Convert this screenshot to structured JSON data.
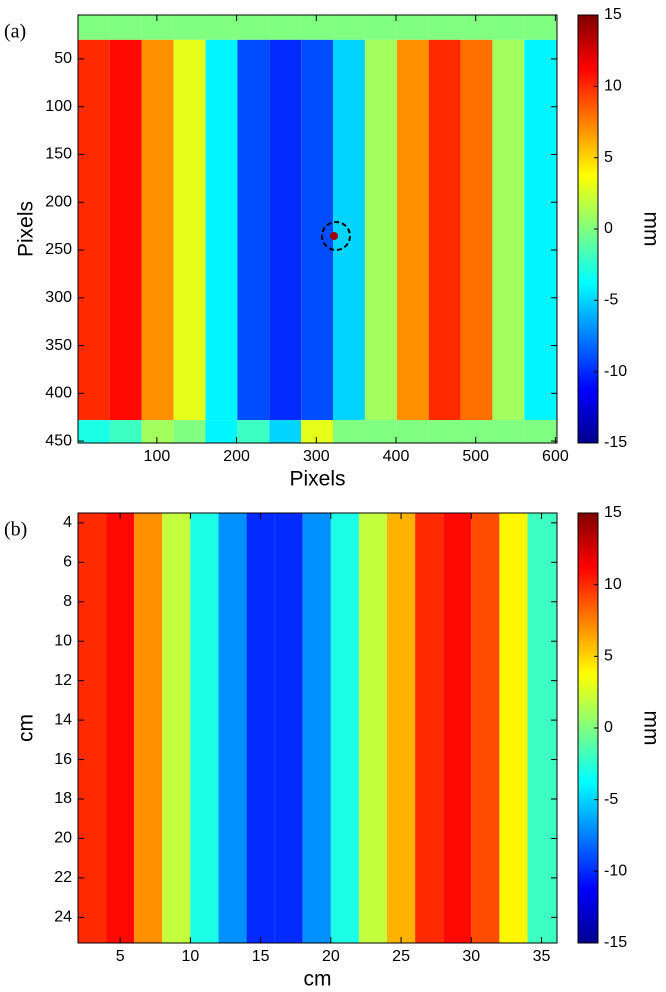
{
  "chart_data": [
    {
      "type": "heatmap",
      "panel_label": "(a)",
      "xlabel": "Pixels",
      "ylabel": "Pixels",
      "colorbar_label": "mm",
      "colormap": "jet",
      "xlim": [
        1,
        602
      ],
      "ylim": [
        4,
        452
      ],
      "y_reversed": true,
      "xticks": [
        100,
        200,
        300,
        400,
        500,
        600
      ],
      "yticks": [
        50,
        100,
        150,
        200,
        250,
        300,
        350,
        400,
        450
      ],
      "clim": [
        -15,
        15
      ],
      "cticks": [
        -15,
        -10,
        -5,
        0,
        5,
        10,
        15
      ],
      "x_edges": [
        1,
        41,
        81,
        121,
        161,
        201,
        241,
        281,
        321,
        361,
        401,
        441,
        481,
        521,
        561,
        602
      ],
      "y_edges": [
        4,
        30,
        428,
        452
      ],
      "values": [
        [
          0,
          0,
          0,
          0,
          0,
          0,
          0,
          0,
          0,
          0,
          0,
          0,
          0,
          0,
          0
        ],
        [
          10,
          11,
          7,
          3,
          -4,
          -9,
          -10,
          -9,
          -5,
          1,
          7,
          10,
          8,
          1,
          -4
        ],
        [
          -3,
          -2,
          1,
          0,
          -4,
          -2,
          -5,
          3,
          0,
          0,
          0,
          0,
          0,
          0,
          0
        ]
      ]
    },
    {
      "type": "heatmap",
      "panel_label": "(b)",
      "xlabel": "cm",
      "ylabel": "cm",
      "colorbar_label": "mm",
      "colormap": "jet",
      "xlim": [
        2,
        36.1
      ],
      "ylim": [
        3.5,
        25.3
      ],
      "y_reversed": true,
      "xticks": [
        5,
        10,
        15,
        20,
        25,
        30,
        35
      ],
      "yticks": [
        4,
        6,
        8,
        10,
        12,
        14,
        16,
        18,
        20,
        22,
        24
      ],
      "clim": [
        -15,
        15
      ],
      "cticks": [
        -15,
        -10,
        -5,
        0,
        5,
        10,
        15
      ],
      "x_edges": [
        2,
        4,
        6,
        8,
        10,
        12,
        14,
        16,
        18,
        20,
        22,
        24,
        26,
        28,
        30,
        32,
        34,
        36.1
      ],
      "y_edges": [
        3.5,
        25.3
      ],
      "values": [
        [
          10,
          11,
          7,
          2,
          -3,
          -7,
          -10,
          -10,
          -7,
          -3,
          2,
          6,
          10,
          11,
          9,
          4,
          -2
        ]
      ]
    }
  ]
}
